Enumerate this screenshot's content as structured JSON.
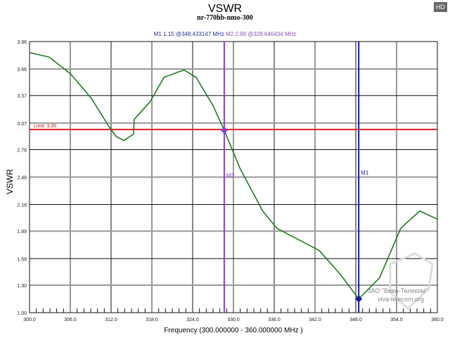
{
  "chart_data": {
    "type": "line",
    "title": "VSWR",
    "subtitle": "nr-770hb-nmo-300",
    "xlabel": "Frequency (300.000000 - 360.000000 MHz )",
    "ylabel": "VSWR",
    "xlim": [
      300,
      360
    ],
    "ylim": [
      1.0,
      3.96
    ],
    "xticks": [
      "300.0",
      "306.0",
      "312.0",
      "318.0",
      "324.0",
      "330.0",
      "336.0",
      "342.0",
      "348.0",
      "354.0",
      "360.0"
    ],
    "yticks": [
      "1.00",
      "1.30",
      "1.59",
      "1.89",
      "2.18",
      "2.48",
      "2.78",
      "3.07",
      "3.37",
      "3.66",
      "3.96"
    ],
    "grid": true,
    "series": [
      {
        "color": "#1f7a1f",
        "x": [
          300,
          302.9,
          306,
          309.1,
          311.7,
          312.8,
          313.9,
          315.3,
          315.4,
          317.7,
          319.8,
          322.7,
          324.5,
          327,
          328.65,
          331,
          334.3,
          336.4,
          339.5,
          342.6,
          345.7,
          348.43,
          351.5,
          354.6,
          357.4,
          360
        ],
        "y": [
          3.84,
          3.79,
          3.61,
          3.34,
          3.03,
          2.92,
          2.88,
          2.95,
          3.11,
          3.3,
          3.57,
          3.65,
          3.57,
          3.26,
          2.99,
          2.57,
          2.11,
          1.92,
          1.8,
          1.68,
          1.42,
          1.15,
          1.38,
          1.92,
          2.11,
          2.02
        ]
      }
    ],
    "limit": {
      "value": 3.0,
      "label": "Limit: 3.00",
      "color": "#e02020"
    },
    "markers": [
      {
        "name": "M1",
        "value": 1.15,
        "freq": 348.433147,
        "text": "M1  1.15 @348.433147 MHz",
        "color": "#1a1aa0"
      },
      {
        "name": "M2",
        "value": 2.99,
        "freq": 328.646434,
        "text": "M2  2.99 @328.646434 MHz",
        "color": "#8a3fd0"
      }
    ]
  },
  "badge": "HD",
  "watermark": {
    "line1": "ЗАО \"Вива-Телеком\"",
    "line2": "viva-telecom.org"
  }
}
